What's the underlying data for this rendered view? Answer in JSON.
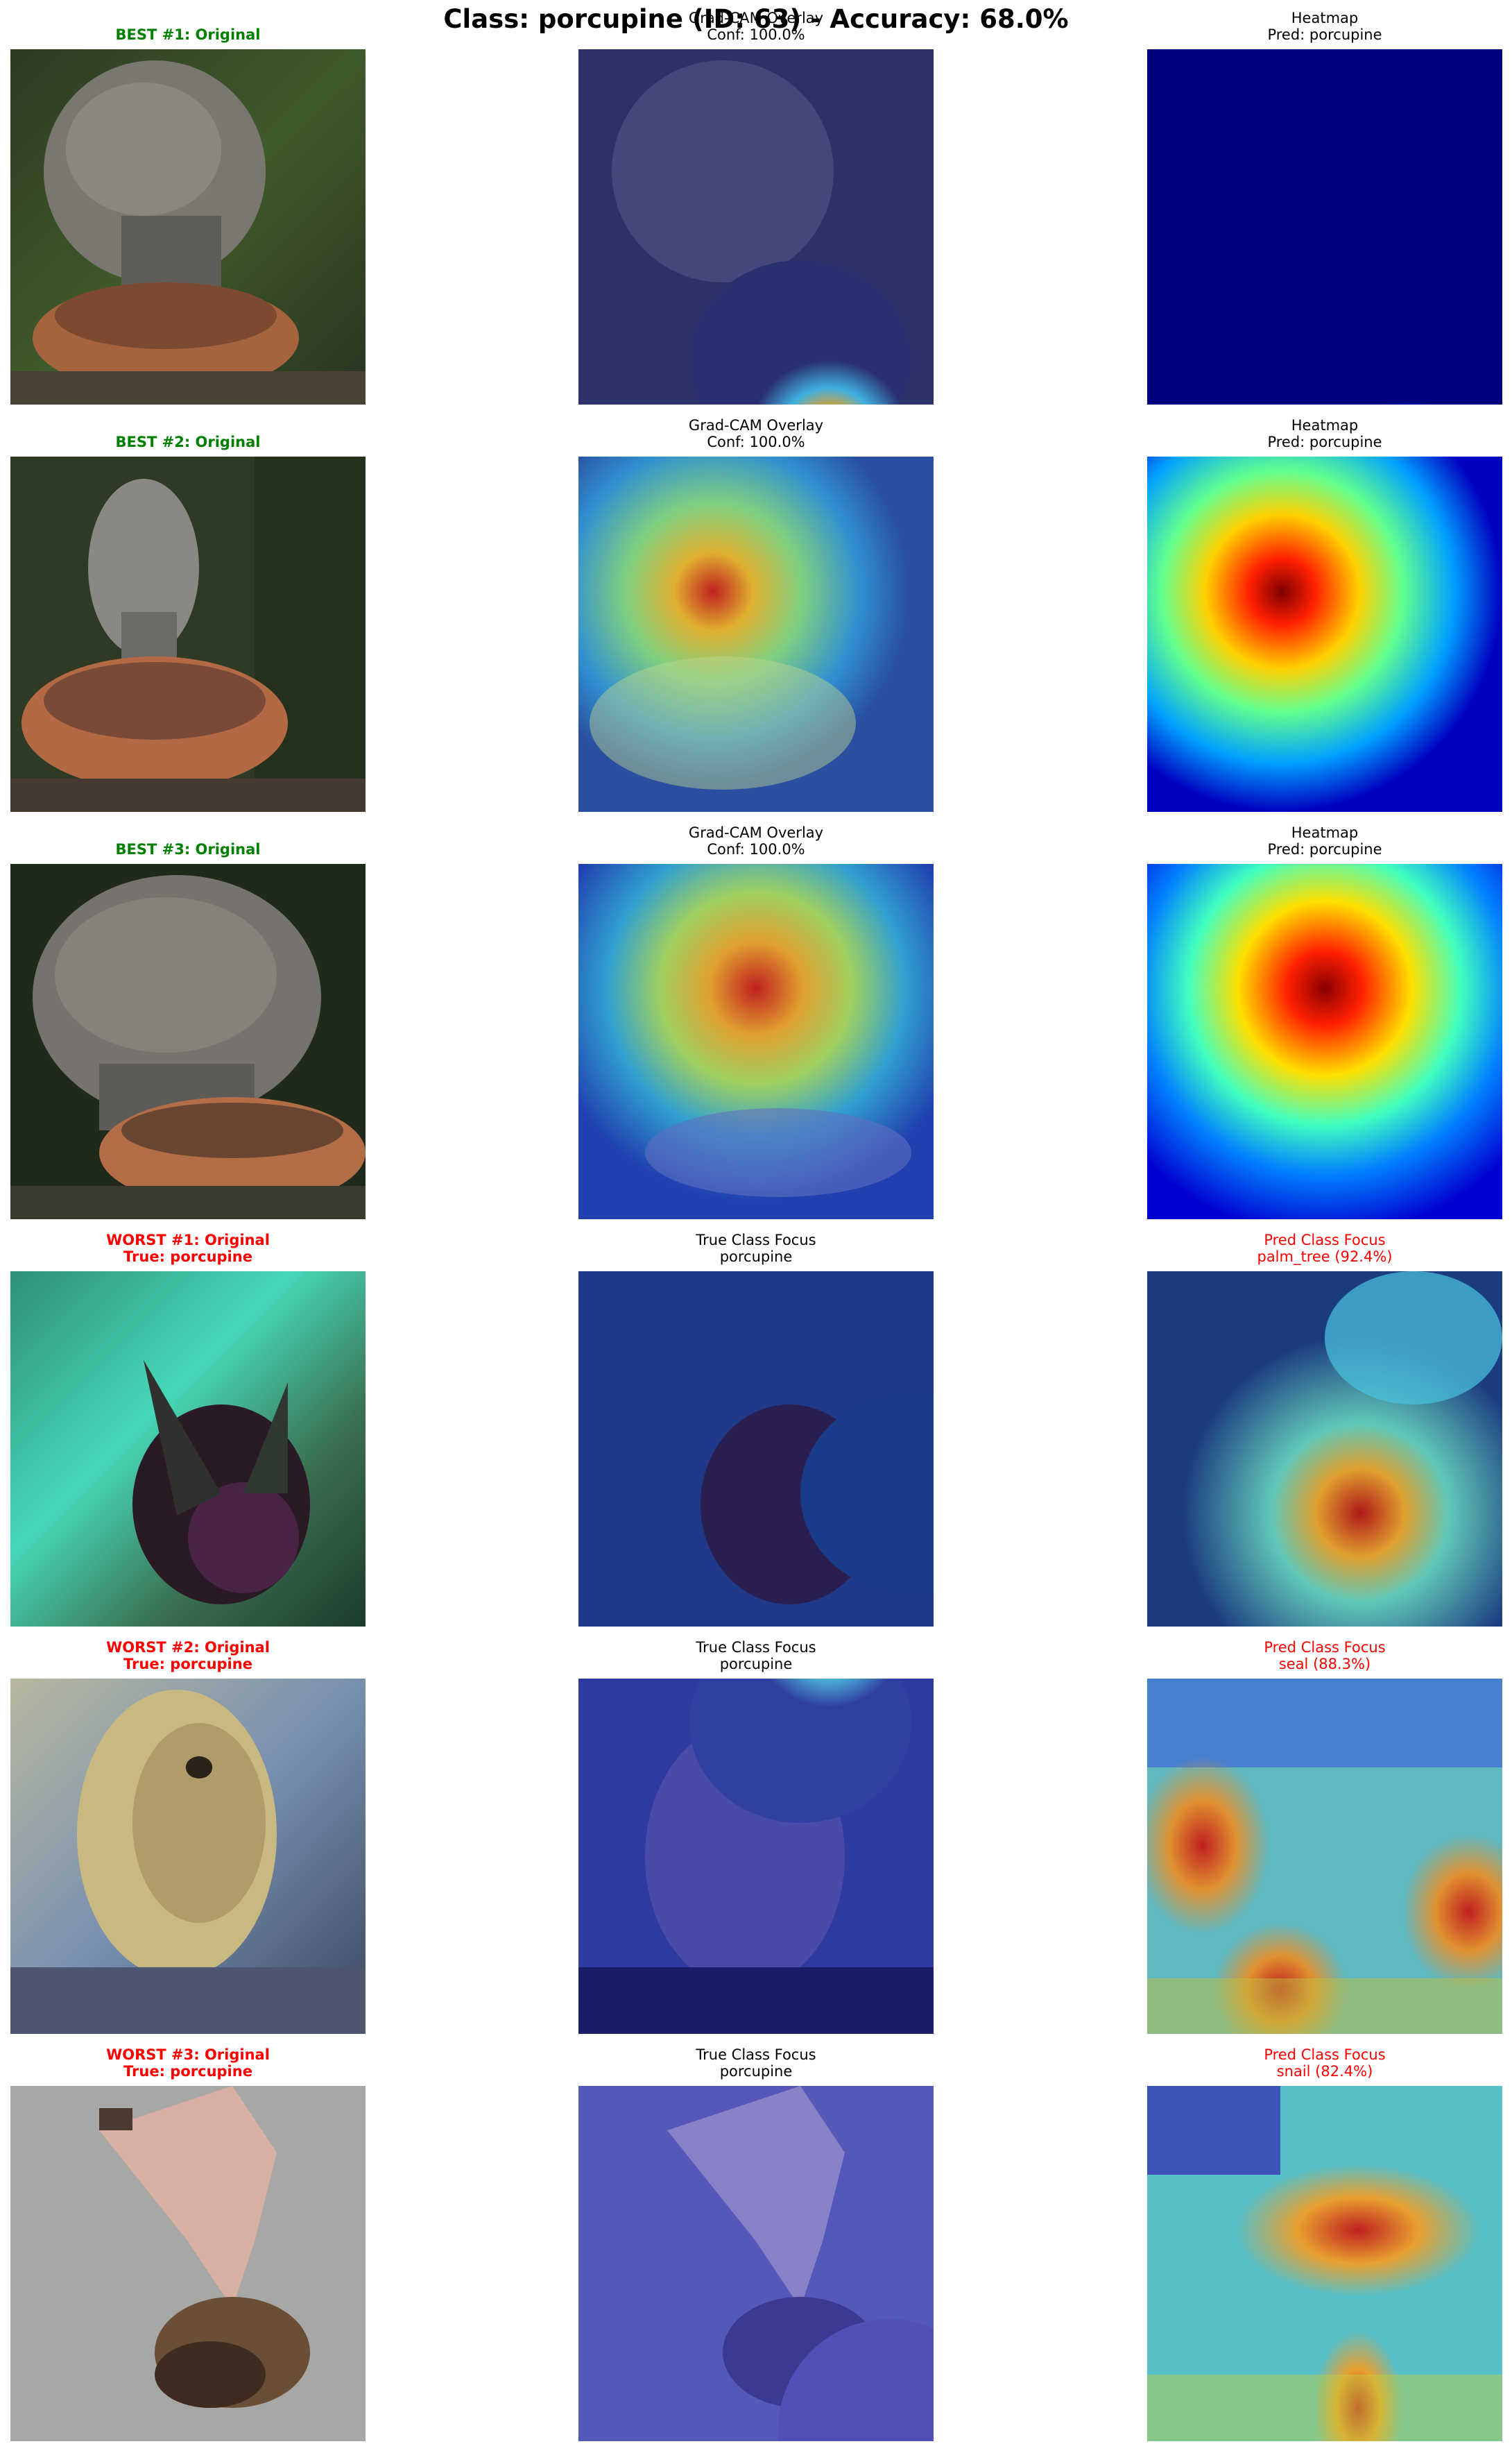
{
  "suptitle": "Class: porcupine (ID: 63) - Accuracy: 68.0%",
  "rows": [
    {
      "original": {
        "line1": "BEST #1: Original",
        "line2": "",
        "style": "green"
      },
      "middle": {
        "line1": "Grad-CAM Overlay",
        "line2": "Conf: 100.0%",
        "style": "black"
      },
      "right": {
        "line1": "Heatmap",
        "line2": "Pred: porcupine",
        "style": "black"
      }
    },
    {
      "original": {
        "line1": "BEST #2: Original",
        "line2": "",
        "style": "green"
      },
      "middle": {
        "line1": "Grad-CAM Overlay",
        "line2": "Conf: 100.0%",
        "style": "black"
      },
      "right": {
        "line1": "Heatmap",
        "line2": "Pred: porcupine",
        "style": "black"
      }
    },
    {
      "original": {
        "line1": "BEST #3: Original",
        "line2": "",
        "style": "green"
      },
      "middle": {
        "line1": "Grad-CAM Overlay",
        "line2": "Conf: 100.0%",
        "style": "black"
      },
      "right": {
        "line1": "Heatmap",
        "line2": "Pred: porcupine",
        "style": "black"
      }
    },
    {
      "original": {
        "line1": "WORST #1: Original",
        "line2": "True: porcupine",
        "style": "red-bold"
      },
      "middle": {
        "line1": "True Class Focus",
        "line2": "porcupine",
        "style": "black"
      },
      "right": {
        "line1": "Pred Class Focus",
        "line2": "palm_tree (92.4%)",
        "style": "red"
      }
    },
    {
      "original": {
        "line1": "WORST #2: Original",
        "line2": "True: porcupine",
        "style": "red-bold"
      },
      "middle": {
        "line1": "True Class Focus",
        "line2": "porcupine",
        "style": "black"
      },
      "right": {
        "line1": "Pred Class Focus",
        "line2": "seal (88.3%)",
        "style": "red"
      }
    },
    {
      "original": {
        "line1": "WORST #3: Original",
        "line2": "True: porcupine",
        "style": "red-bold"
      },
      "middle": {
        "line1": "True Class Focus",
        "line2": "porcupine",
        "style": "black"
      },
      "right": {
        "line1": "Pred Class Focus",
        "line2": "snail (82.4%)",
        "style": "red"
      }
    }
  ],
  "colors": {
    "best_title": "#008000",
    "worst_title": "#ff0000",
    "jet_low": "#00007f",
    "jet_high": "#7f0000"
  }
}
